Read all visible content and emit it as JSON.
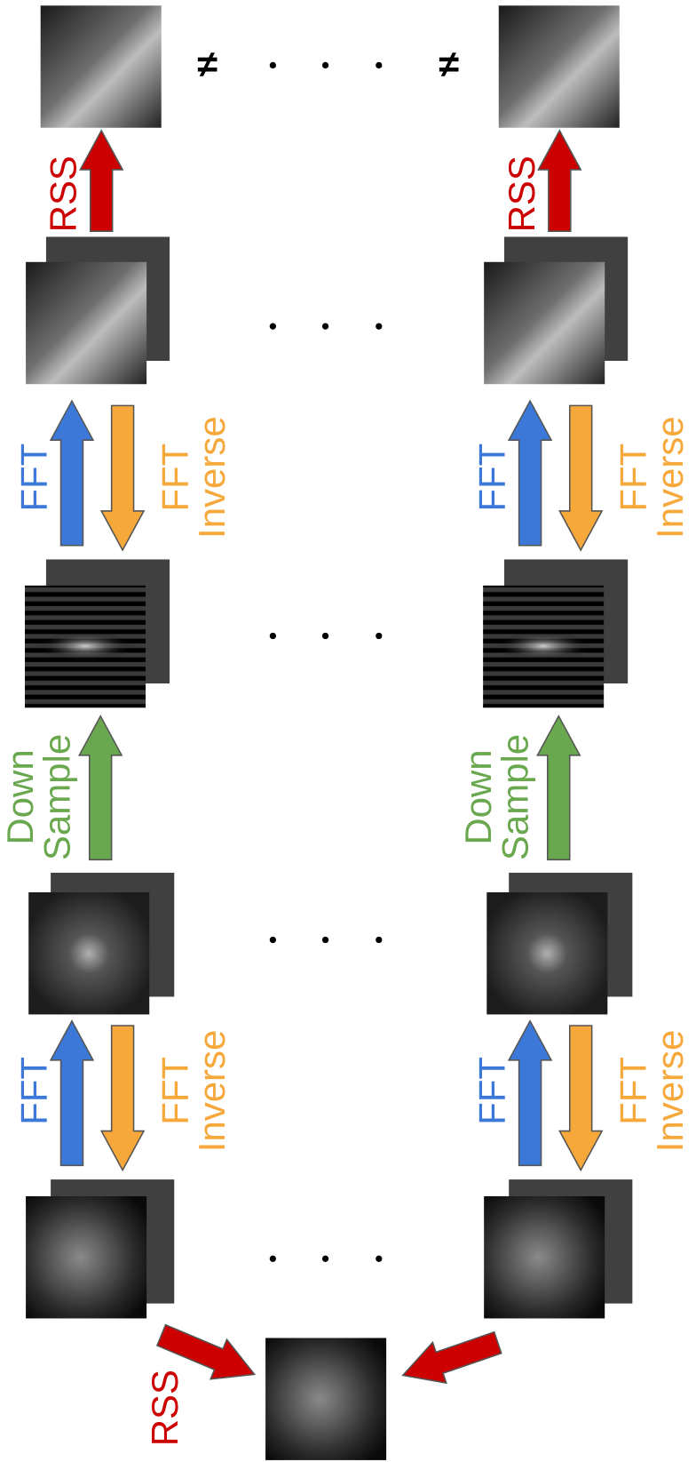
{
  "not_equal": [
    "≠",
    "≠"
  ],
  "columns": [
    {
      "rss": "RSS",
      "upper_fft": "FFT",
      "upper_inverse": [
        "FFT",
        "Inverse"
      ],
      "downsample": [
        "Down",
        "Sample"
      ],
      "lower_fft": "FFT",
      "lower_inverse": [
        "FFT",
        "Inverse"
      ]
    },
    {
      "rss": "RSS",
      "upper_fft": "FFT",
      "upper_inverse": [
        "FFT",
        "Inverse"
      ],
      "downsample": [
        "Down",
        "Sample"
      ],
      "lower_fft": "FFT",
      "lower_inverse": [
        "FFT",
        "Inverse"
      ]
    }
  ],
  "final_rss": "RSS"
}
